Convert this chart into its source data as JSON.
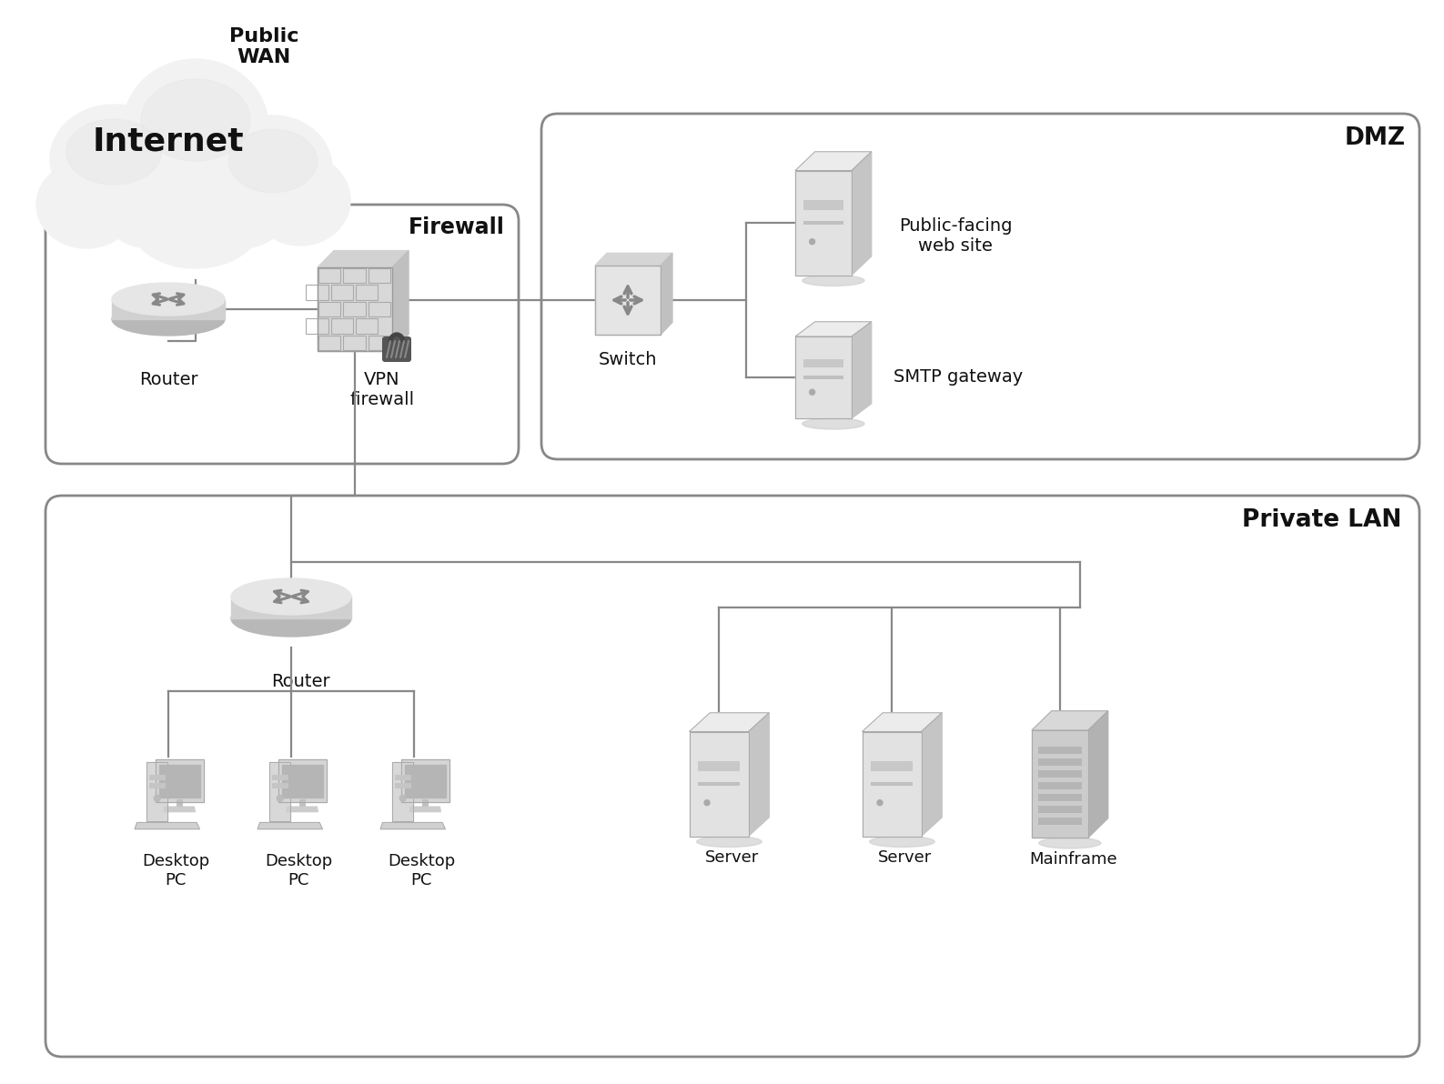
{
  "bg_color": "#ffffff",
  "text_color": "#111111",
  "title_public_wan": "Public\nWAN",
  "label_internet": "Internet",
  "label_firewall": "Firewall",
  "label_dmz": "DMZ",
  "label_private_lan": "Private LAN",
  "label_router1": "Router",
  "label_router2": "Router",
  "label_vpn": "VPN\nfirewall",
  "label_switch": "Switch",
  "label_web": "Public-facing\nweb site",
  "label_smtp": "SMTP gateway",
  "label_desktop": "Desktop\nPC",
  "label_server": "Server",
  "label_mainframe": "Mainframe",
  "line_color": "#888888",
  "border_color": "#888888"
}
